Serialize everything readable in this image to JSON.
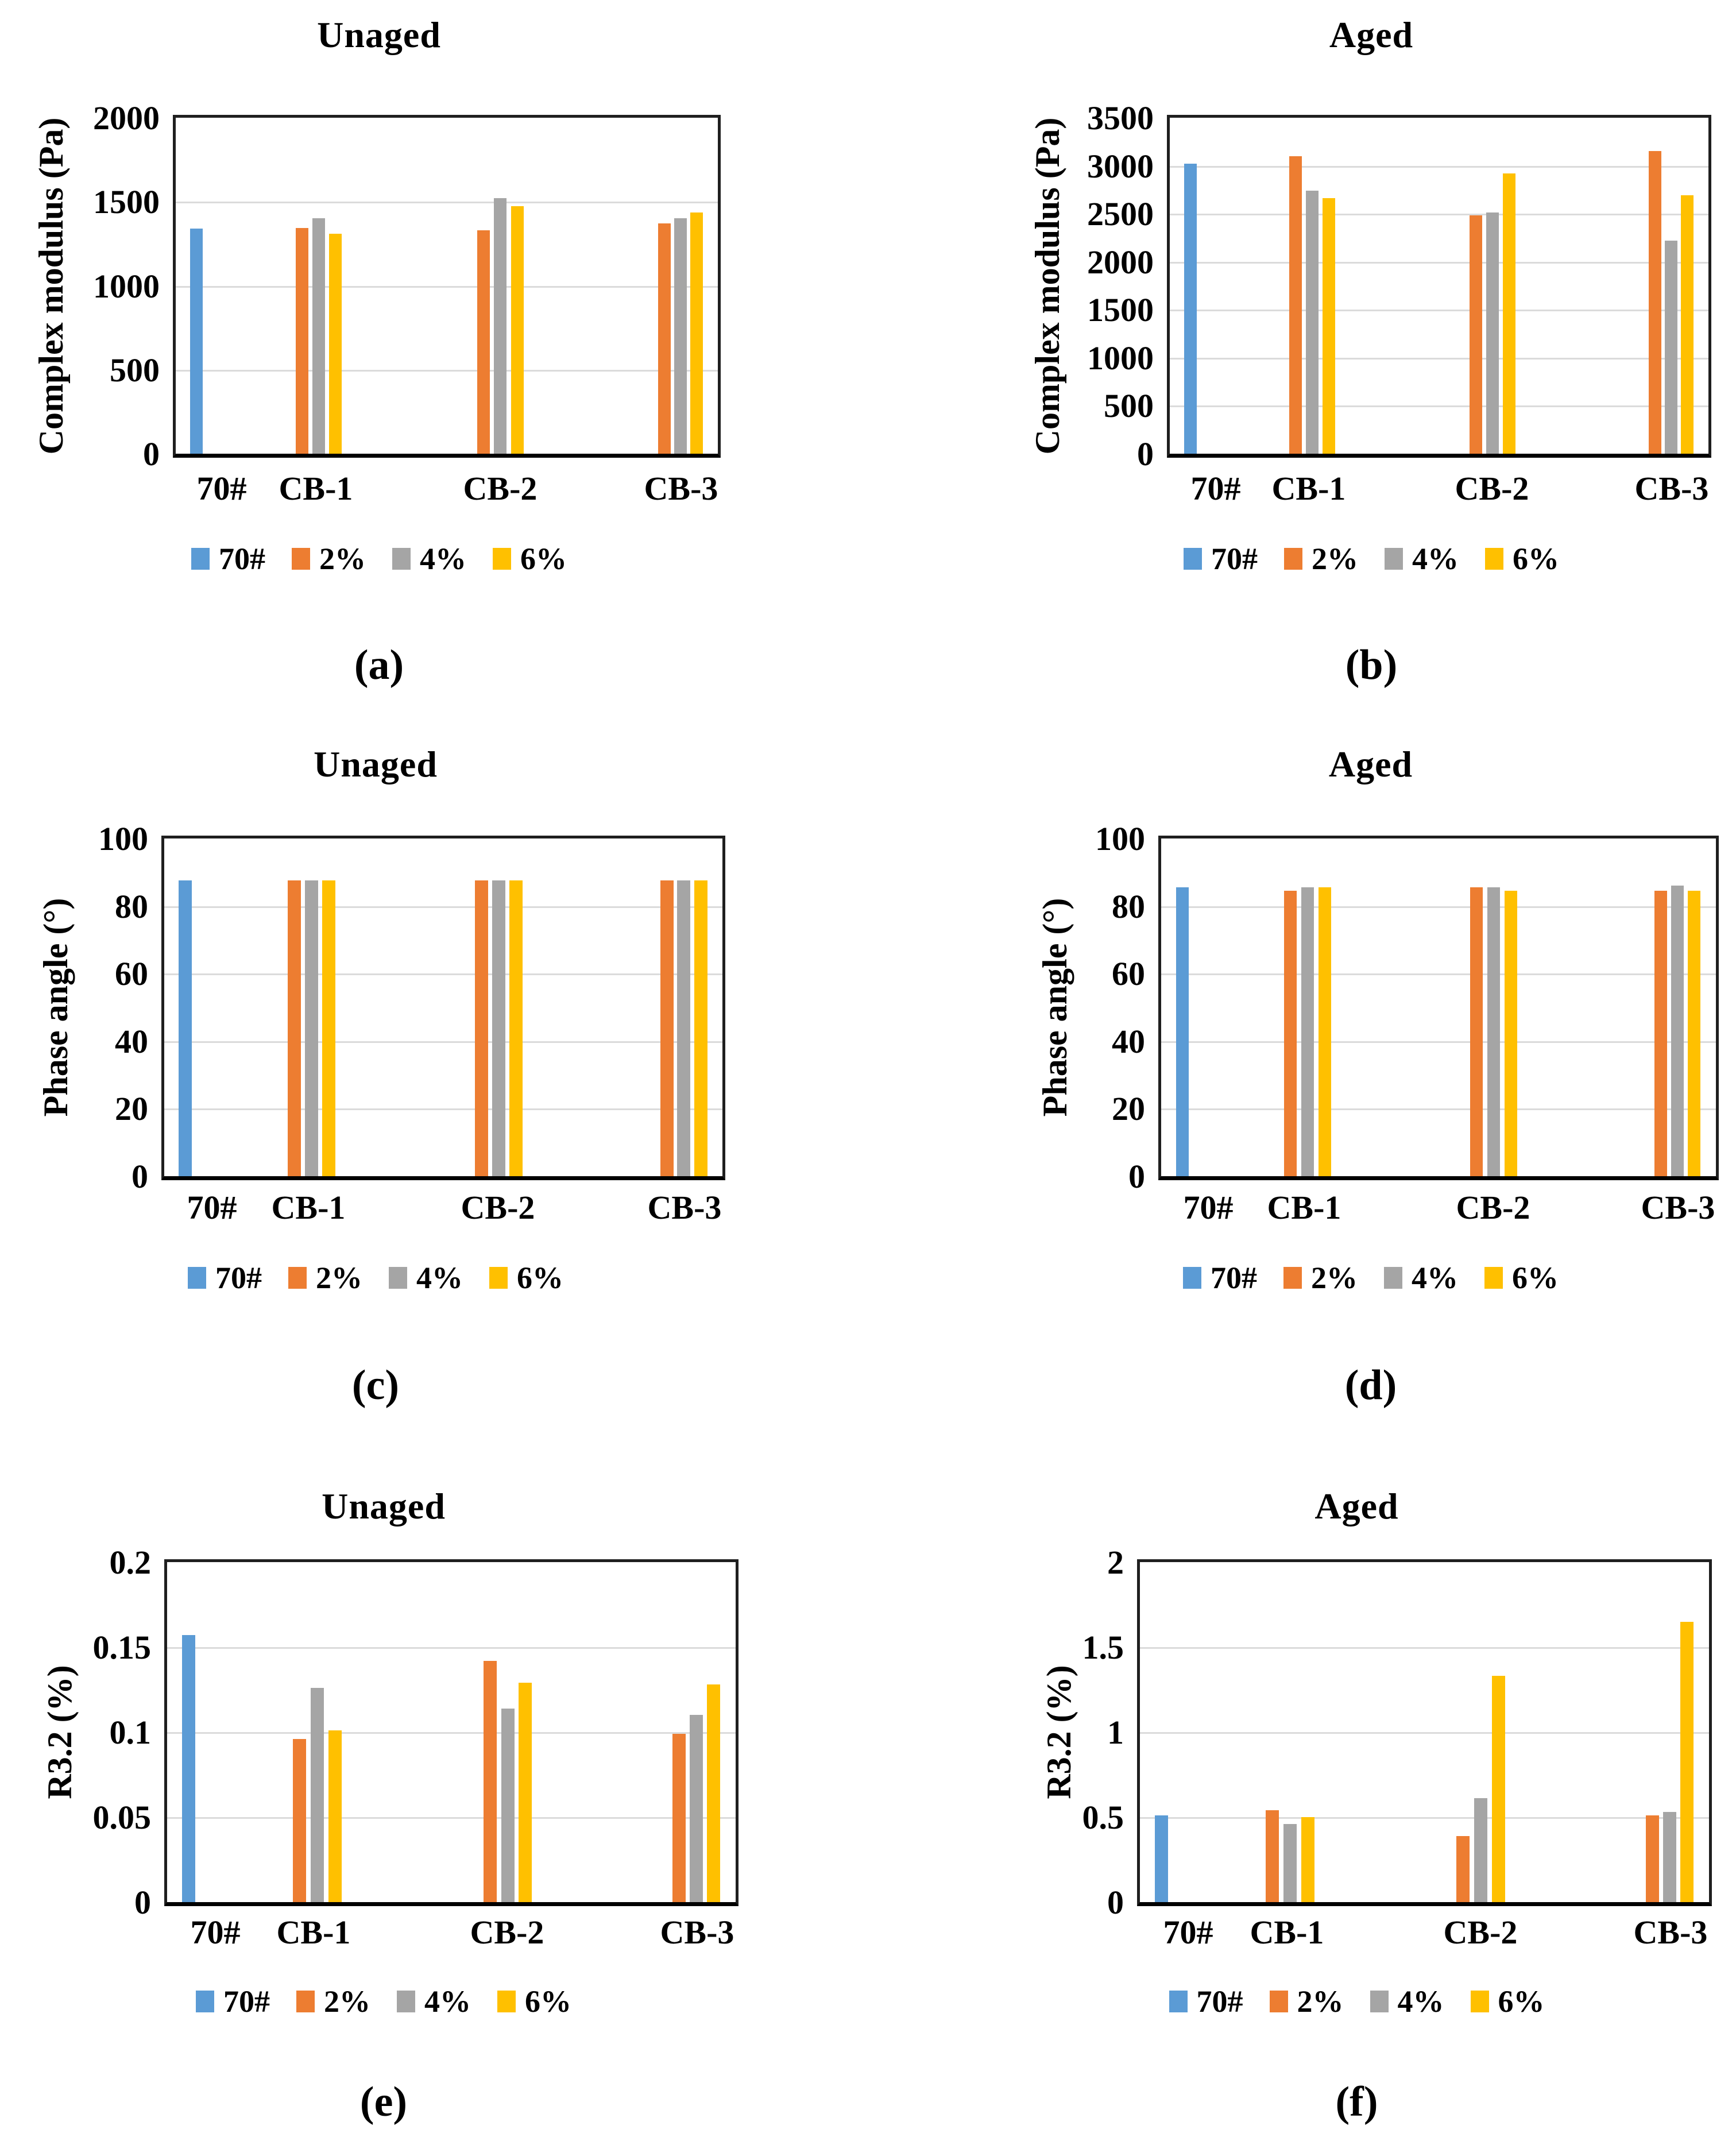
{
  "figure": {
    "background": "#FFFFFF",
    "grid_color": "#DBDBDB",
    "axis_color": "#1F1F1F",
    "legend": {
      "position": "bottom",
      "items": [
        {
          "label": "70#",
          "color": "#5B9BD5"
        },
        {
          "label": "2%",
          "color": "#ED7D31"
        },
        {
          "label": "4%",
          "color": "#A5A5A5"
        },
        {
          "label": "6%",
          "color": "#FFC000"
        }
      ]
    },
    "series_colors": {
      "70#": "#5B9BD5",
      "2%": "#ED7D31",
      "4%": "#A5A5A5",
      "6%": "#FFC000"
    }
  },
  "chart_data": [
    {
      "id": "a",
      "caption": "(a)",
      "title": "Unaged",
      "type": "bar",
      "ylabel": "Complex modulus (Pa)",
      "xlabel": "",
      "categories": [
        "70#",
        "CB-1",
        "CB-2",
        "CB-3"
      ],
      "series": [
        {
          "name": "70#",
          "values": [
            1340,
            null,
            null,
            null
          ]
        },
        {
          "name": "2%",
          "values": [
            null,
            1345,
            1330,
            1370
          ]
        },
        {
          "name": "4%",
          "values": [
            null,
            1400,
            1520,
            1400
          ]
        },
        {
          "name": "6%",
          "values": [
            null,
            1310,
            1475,
            1435
          ]
        }
      ],
      "ylim": [
        0,
        2000
      ],
      "yticks": {
        "values": [
          0,
          500,
          1000,
          1500,
          2000
        ],
        "labels": [
          "0",
          "500",
          "1000",
          "1500",
          "2000"
        ]
      },
      "grid": true,
      "legend_position": "bottom"
    },
    {
      "id": "b",
      "caption": "(b)",
      "title": "Aged",
      "type": "bar",
      "ylabel": "Complex modulus (Pa)",
      "xlabel": "",
      "categories": [
        "70#",
        "CB-1",
        "CB-2",
        "CB-3"
      ],
      "series": [
        {
          "name": "70#",
          "values": [
            3020,
            null,
            null,
            null
          ]
        },
        {
          "name": "2%",
          "values": [
            null,
            3100,
            2480,
            3150
          ]
        },
        {
          "name": "4%",
          "values": [
            null,
            2740,
            2510,
            2220
          ]
        },
        {
          "name": "6%",
          "values": [
            null,
            2660,
            2920,
            2690
          ]
        }
      ],
      "ylim": [
        0,
        3500
      ],
      "yticks": {
        "values": [
          0,
          500,
          1000,
          1500,
          2000,
          2500,
          3000,
          3500
        ],
        "labels": [
          "0",
          "500",
          "1000",
          "1500",
          "2000",
          "2500",
          "3000",
          "3500"
        ]
      },
      "grid": true,
      "legend_position": "bottom"
    },
    {
      "id": "c",
      "caption": "(c)",
      "title": "Unaged",
      "type": "bar",
      "ylabel": "Phase angle (°)",
      "xlabel": "",
      "categories": [
        "70#",
        "CB-1",
        "CB-2",
        "CB-3"
      ],
      "series": [
        {
          "name": "70#",
          "values": [
            87.5,
            null,
            null,
            null
          ]
        },
        {
          "name": "2%",
          "values": [
            null,
            87.5,
            87.5,
            87.5
          ]
        },
        {
          "name": "4%",
          "values": [
            null,
            87.5,
            87.5,
            87.5
          ]
        },
        {
          "name": "6%",
          "values": [
            null,
            87.5,
            87.5,
            87.5
          ]
        }
      ],
      "ylim": [
        0,
        100
      ],
      "yticks": {
        "values": [
          0,
          20,
          40,
          60,
          80,
          100
        ],
        "labels": [
          "0",
          "20",
          "40",
          "60",
          "80",
          "100"
        ]
      },
      "grid": true,
      "legend_position": "bottom"
    },
    {
      "id": "d",
      "caption": "(d)",
      "title": "Aged",
      "type": "bar",
      "ylabel": "Phase angle (°)",
      "xlabel": "",
      "categories": [
        "70#",
        "CB-1",
        "CB-2",
        "CB-3"
      ],
      "series": [
        {
          "name": "70#",
          "values": [
            85.5,
            null,
            null,
            null
          ]
        },
        {
          "name": "2%",
          "values": [
            null,
            84.5,
            85.5,
            84.5
          ]
        },
        {
          "name": "4%",
          "values": [
            null,
            85.5,
            85.5,
            86.0
          ]
        },
        {
          "name": "6%",
          "values": [
            null,
            85.5,
            84.5,
            84.5
          ]
        }
      ],
      "ylim": [
        0,
        100
      ],
      "yticks": {
        "values": [
          0,
          20,
          40,
          60,
          80,
          100
        ],
        "labels": [
          "0",
          "20",
          "40",
          "60",
          "80",
          "100"
        ]
      },
      "grid": true,
      "legend_position": "bottom"
    },
    {
      "id": "e",
      "caption": "(e)",
      "title": "Unaged",
      "type": "bar",
      "ylabel": "R3.2 (%)",
      "xlabel": "",
      "categories": [
        "70#",
        "CB-1",
        "CB-2",
        "CB-3"
      ],
      "series": [
        {
          "name": "70#",
          "values": [
            0.157,
            null,
            null,
            null
          ]
        },
        {
          "name": "2%",
          "values": [
            null,
            0.096,
            0.142,
            0.099
          ]
        },
        {
          "name": "4%",
          "values": [
            null,
            0.126,
            0.114,
            0.11
          ]
        },
        {
          "name": "6%",
          "values": [
            null,
            0.101,
            0.129,
            0.128
          ]
        }
      ],
      "ylim": [
        0,
        0.2
      ],
      "yticks": {
        "values": [
          0,
          0.05,
          0.1,
          0.15,
          0.2
        ],
        "labels": [
          "0",
          "0.05",
          "0.1",
          "0.15",
          "0.2"
        ]
      },
      "grid": true,
      "legend_position": "bottom"
    },
    {
      "id": "f",
      "caption": "(f)",
      "title": "Aged",
      "type": "bar",
      "ylabel": "R3.2 (%)",
      "xlabel": "",
      "categories": [
        "70#",
        "CB-1",
        "CB-2",
        "CB-3"
      ],
      "series": [
        {
          "name": "70#",
          "values": [
            0.51,
            null,
            null,
            null
          ]
        },
        {
          "name": "2%",
          "values": [
            null,
            0.54,
            0.39,
            0.51
          ]
        },
        {
          "name": "4%",
          "values": [
            null,
            0.46,
            0.61,
            0.53
          ]
        },
        {
          "name": "6%",
          "values": [
            null,
            0.5,
            1.33,
            1.65
          ]
        }
      ],
      "ylim": [
        0,
        2
      ],
      "yticks": {
        "values": [
          0,
          0.5,
          1,
          1.5,
          2
        ],
        "labels": [
          "0",
          "0.5",
          "1",
          "1.5",
          "2"
        ]
      },
      "grid": true,
      "legend_position": "bottom"
    }
  ]
}
